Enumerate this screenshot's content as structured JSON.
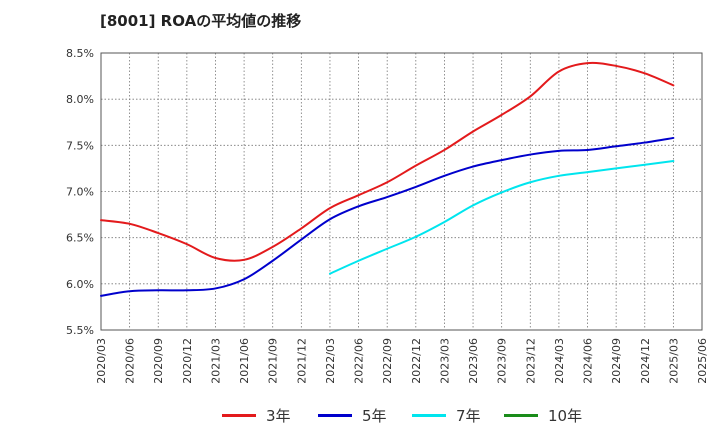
{
  "title": "[8001]  ROAの平均値の推移",
  "chart_data": {
    "type": "line",
    "title": "[8001]  ROAの平均値の推移",
    "xlabel": "",
    "ylabel": "",
    "ylim": [
      5.5,
      8.5
    ],
    "yticks": [
      "5.5%",
      "6.0%",
      "6.5%",
      "7.0%",
      "7.5%",
      "8.0%",
      "8.5%"
    ],
    "categories": [
      "2020/03",
      "2020/06",
      "2020/09",
      "2020/12",
      "2021/03",
      "2021/06",
      "2021/09",
      "2021/12",
      "2022/03",
      "2022/06",
      "2022/09",
      "2022/12",
      "2023/03",
      "2023/06",
      "2023/09",
      "2023/12",
      "2024/03",
      "2024/06",
      "2024/09",
      "2024/12",
      "2025/03",
      "2025/06"
    ],
    "grid": true,
    "legend_position": "bottom",
    "series": [
      {
        "name": "3年",
        "color": "#e31a1c",
        "values": [
          6.69,
          6.65,
          6.55,
          6.43,
          6.28,
          6.26,
          6.4,
          6.6,
          6.82,
          6.96,
          7.1,
          7.28,
          7.45,
          7.65,
          7.83,
          8.03,
          8.3,
          8.39,
          8.36,
          8.28,
          8.15,
          null
        ]
      },
      {
        "name": "5年",
        "color": "#0000cc",
        "values": [
          5.87,
          5.92,
          5.93,
          5.93,
          5.95,
          6.05,
          6.25,
          6.48,
          6.7,
          6.84,
          6.94,
          7.05,
          7.17,
          7.27,
          7.34,
          7.4,
          7.44,
          7.45,
          7.49,
          7.53,
          7.58,
          null
        ]
      },
      {
        "name": "7年",
        "color": "#00e5ee",
        "values": [
          null,
          null,
          null,
          null,
          null,
          null,
          null,
          null,
          6.11,
          6.25,
          6.38,
          6.51,
          6.67,
          6.85,
          6.99,
          7.1,
          7.17,
          7.21,
          7.25,
          7.29,
          7.33,
          null
        ]
      },
      {
        "name": "10年",
        "color": "#1a8c1a",
        "values": [
          null,
          null,
          null,
          null,
          null,
          null,
          null,
          null,
          null,
          null,
          null,
          null,
          null,
          null,
          null,
          null,
          null,
          null,
          null,
          null,
          null,
          null
        ]
      }
    ]
  }
}
